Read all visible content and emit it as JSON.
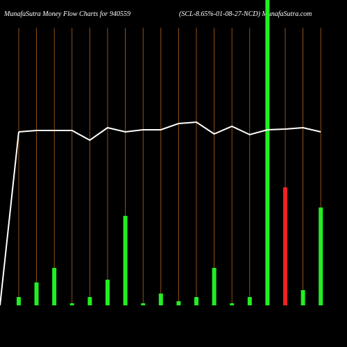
{
  "chart_data": {
    "type": "bar",
    "title": "MunafaSutra  Money Flow  Charts for 940559",
    "subtitle": "(SCL-8.65%-01-08-27-NCD) MunafaSutra.com",
    "categories": [
      null,
      null,
      null,
      null,
      null,
      null,
      null,
      null,
      null,
      null,
      null,
      null,
      null,
      null,
      null,
      null,
      null,
      null
    ],
    "values": [
      12,
      33,
      54,
      3,
      12,
      37,
      129,
      3,
      17,
      6,
      12,
      54,
      3,
      12,
      440,
      170,
      22,
      141
    ],
    "colors": [
      "#22ee22",
      "#22ee22",
      "#22ee22",
      "#22ee22",
      "#22ee22",
      "#22ee22",
      "#22ee22",
      "#22ee22",
      "#22ee22",
      "#22ee22",
      "#22ee22",
      "#22ee22",
      "#22ee22",
      "#22ee22",
      "#22ee22",
      "#ee2222",
      "#22ee22",
      "#22ee22"
    ],
    "line": {
      "color": "#ffffff",
      "values": [
        250,
        252,
        252,
        252,
        238,
        256,
        250,
        253,
        253,
        262,
        264,
        247,
        258,
        246,
        253,
        254,
        256,
        250
      ]
    },
    "gridline_color": "#b5651d",
    "ylim": [
      0,
      440
    ]
  }
}
